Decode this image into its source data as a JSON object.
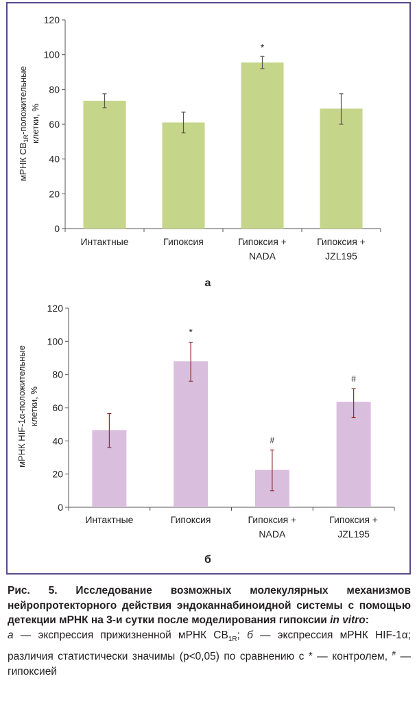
{
  "chart_data": [
    {
      "type": "bar",
      "panel_label": "а",
      "categories": [
        [
          "Интактные"
        ],
        [
          "Гипоксия"
        ],
        [
          "Гипоксия +",
          "NADA"
        ],
        [
          "Гипоксия +",
          "JZL195"
        ]
      ],
      "values": [
        73.5,
        61,
        95.5,
        69
      ],
      "error_low": [
        69.5,
        55,
        92,
        60
      ],
      "error_high": [
        77.5,
        67,
        99,
        77.5
      ],
      "markers": [
        "",
        "",
        "*",
        ""
      ],
      "ylabel_line1_pre": "мРНК CB",
      "ylabel_line1_sub": "1R",
      "ylabel_line1_post": "-положительные",
      "ylabel_line2": "клетки, %",
      "ylim": [
        0,
        120
      ],
      "yticks": [
        "0",
        "20",
        "40",
        "60",
        "80",
        "100",
        "120"
      ],
      "bar_color": "#c5d68a",
      "error_color": "#555555",
      "grid": false
    },
    {
      "type": "bar",
      "panel_label": "б",
      "categories": [
        [
          "Интактные"
        ],
        [
          "Гипоксия"
        ],
        [
          "Гипоксия +",
          "NADA"
        ],
        [
          "Гипоксия +",
          "JZL195"
        ]
      ],
      "values": [
        46.5,
        88,
        22.5,
        63.5
      ],
      "error_low": [
        36,
        76,
        10,
        54
      ],
      "error_high": [
        56.5,
        99.5,
        34.5,
        71.5
      ],
      "markers": [
        "",
        "*",
        "#",
        "#"
      ],
      "ylabel_line1": "мРНК HIF-1α-положительные",
      "ylabel_line2": "клетки, %",
      "ylim": [
        0,
        120
      ],
      "yticks": [
        "0",
        "20",
        "40",
        "60",
        "80",
        "100",
        "120"
      ],
      "bar_color": "#d9bedd",
      "error_color": "#8b2e2e",
      "grid": false
    }
  ],
  "caption": {
    "title": "Рис. 5. Исследование возможных молекулярных механиз­мов нейропротекторного действия эндоканнабиноидной системы с помощью детекции мРНК на 3-и сутки после мо­делирования гипоксии",
    "title_italic": "in vitro",
    "title_end": ":",
    "a_label": "а",
    "a_text": " — экспрессия прижизненной мРНК CB",
    "a_sub": "1R",
    "a_sep": "; ",
    "b_label": "б",
    "b_text": " — экспрессия мРНК HIF-1α; различия статистически значимы (p<0,05) по сравнению с * — контролем, ",
    "hash_sup": "#",
    "b_end": " — гипоксией"
  }
}
